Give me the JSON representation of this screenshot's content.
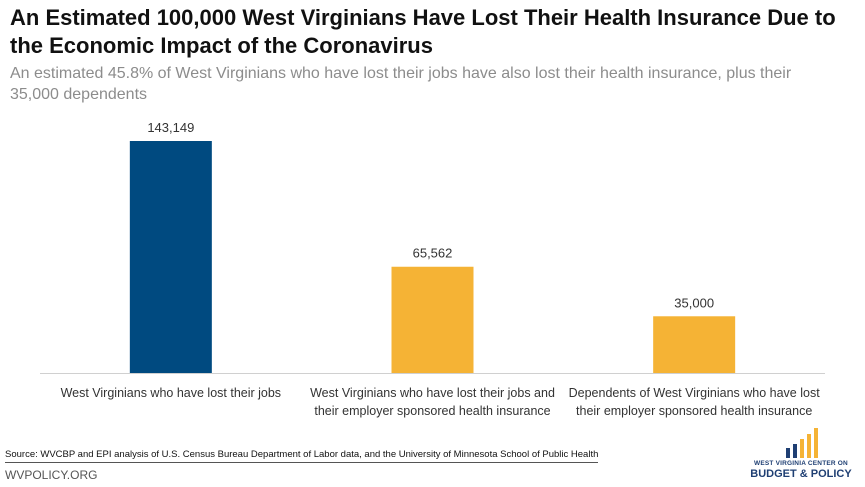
{
  "title": "An Estimated 100,000 West Virginians Have Lost Their Health Insurance Due to the Economic Impact of the Coronavirus",
  "subtitle": "An estimated 45.8% of West Virginians who have lost their jobs have also lost their health insurance, plus their 35,000 dependents",
  "source": "Source: WVCBP and EPI analysis of U.S. Census Bureau Department of Labor data, and the University of Minnesota School of Public Health",
  "website": "WVPOLICY.ORG",
  "logo": {
    "line1": "WEST VIRGINIA CENTER ON",
    "line2": "BUDGET & POLICY"
  },
  "colors": {
    "primary_bar": "#004a80",
    "secondary_bar": "#f5b335"
  },
  "chart_data": {
    "type": "bar",
    "categories": [
      "West Virginians who have lost their jobs",
      "West Virginians who have lost their jobs and their employer sponsored health insurance",
      "Dependents of West Virginians who have lost their employer sponsored health insurance"
    ],
    "values": [
      143149,
      65562,
      35000
    ],
    "value_labels": [
      "143,149",
      "65,562",
      "35,000"
    ],
    "bar_colors": [
      "#004a80",
      "#f5b335",
      "#f5b335"
    ],
    "ylim": [
      0,
      143149
    ],
    "grid": false,
    "legend": false
  }
}
